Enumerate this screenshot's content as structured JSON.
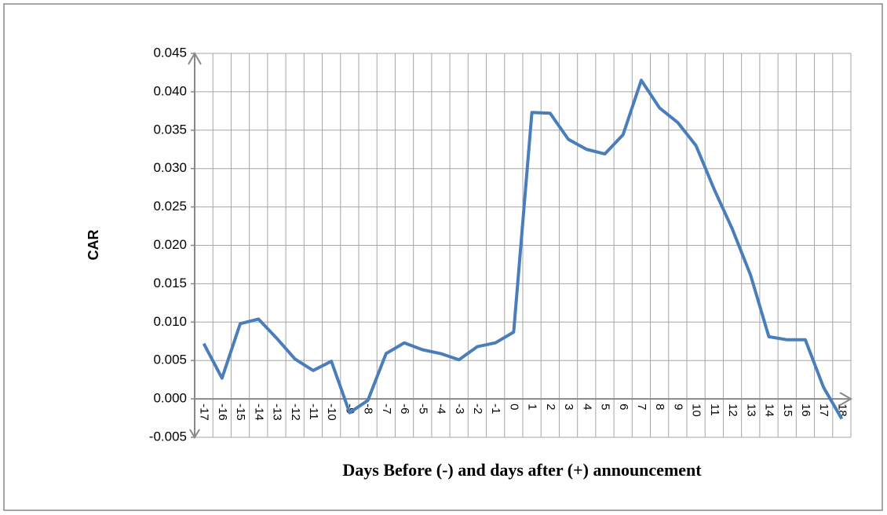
{
  "chart_data": {
    "type": "line",
    "x_label": "Days Before (-) and days after (+) announcement",
    "y_label": "CAR",
    "categories": [
      "-17",
      "-16",
      "-15",
      "-14",
      "-13",
      "-12",
      "-11",
      "-10",
      "-9",
      "-8",
      "-7",
      "-6",
      "-5",
      "-4",
      "-3",
      "-2",
      "-1",
      "0",
      "1",
      "2",
      "3",
      "4",
      "5",
      "6",
      "7",
      "8",
      "9",
      "10",
      "11",
      "12",
      "13",
      "14",
      "15",
      "16",
      "17",
      "18"
    ],
    "values": [
      0.0072,
      0.0027,
      0.0098,
      0.0104,
      0.0079,
      0.0052,
      0.0037,
      0.0049,
      -0.0018,
      -0.0002,
      0.0059,
      0.0073,
      0.0064,
      0.0059,
      0.0051,
      0.0068,
      0.0073,
      0.0087,
      0.0373,
      0.0372,
      0.0338,
      0.0325,
      0.0319,
      0.0344,
      0.0415,
      0.0379,
      0.036,
      0.033,
      0.0273,
      0.0221,
      0.0161,
      0.0081,
      0.0077,
      0.0077,
      0.0015,
      -0.0026
    ],
    "color": "#4a7ebb",
    "ylim": [
      -0.005,
      0.045
    ],
    "yticks": [
      -0.005,
      {
        "value": 0,
        "label": "0.000"
      },
      0.005,
      {
        "value": 0.01,
        "label": "0.010"
      },
      0.015,
      {
        "value": 0.02,
        "label": "0.020"
      },
      0.025,
      {
        "value": 0.03,
        "label": "0.030"
      },
      0.035,
      {
        "value": 0.04,
        "label": "0.040"
      },
      0.045
    ],
    "grid": true
  }
}
